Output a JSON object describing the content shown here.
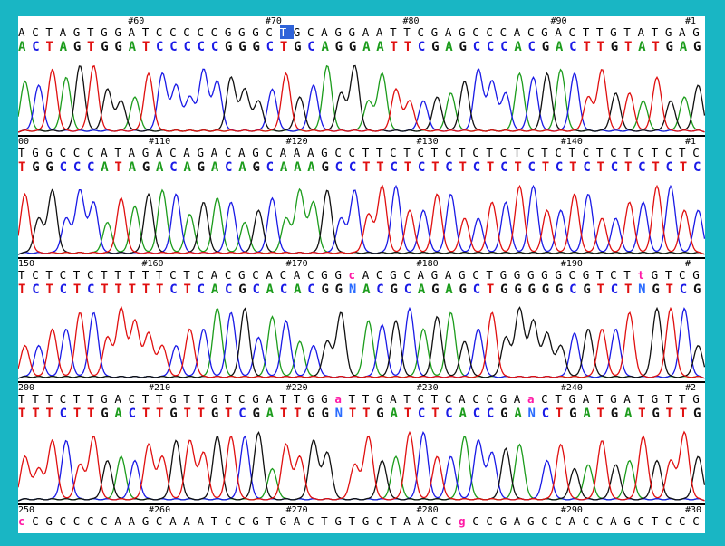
{
  "rows": [
    {
      "ruler": [
        {
          "label": "#60",
          "pos": 0.16
        },
        {
          "label": "#70",
          "pos": 0.36
        },
        {
          "label": "#80",
          "pos": 0.56
        },
        {
          "label": "#90",
          "pos": 0.775
        },
        {
          "label": "#1",
          "pos": 0.992
        }
      ],
      "raw": "ACTAGTGGATCCCCCGGGCTGCAGGAATTCGAGCCCACGACTTGTATGAG",
      "called": "ACTAGTGGATCCCCCGGGCTGCAGGAATTCGAGCCCACGACTTGTATGAG",
      "selected_index": 19
    },
    {
      "ruler": [
        {
          "label": "00",
          "pos": 0.0
        },
        {
          "label": "#110",
          "pos": 0.19
        },
        {
          "label": "#120",
          "pos": 0.39
        },
        {
          "label": "#130",
          "pos": 0.58
        },
        {
          "label": "#140",
          "pos": 0.79
        },
        {
          "label": "#1",
          "pos": 0.992
        }
      ],
      "raw": "TGGCCCATAGACAGACAGCAAAGCCTTCTCTCTCTCTCTCTCTCTCTCTC",
      "called": "TGGCCCATAGACAGACAGCAAAGCCTTCTCTCTCTCTCTCTCTCTCTCTC",
      "selected_index": -1
    },
    {
      "ruler": [
        {
          "label": "150",
          "pos": 0.0
        },
        {
          "label": "#160",
          "pos": 0.18
        },
        {
          "label": "#170",
          "pos": 0.39
        },
        {
          "label": "#180",
          "pos": 0.58
        },
        {
          "label": "#190",
          "pos": 0.79
        },
        {
          "label": "#",
          "pos": 0.995
        }
      ],
      "raw": "TCTCTCTTTTTCTCACGCACACGGcACGCAGAGCTGGGGGCGTCTtGTCG",
      "called": "TCTCTCTTTTTCTCACGCACACGGNACGCAGAGCTGGGGGCGTCTNGTCG",
      "selected_index": -1
    },
    {
      "ruler": [
        {
          "label": "200",
          "pos": 0.0
        },
        {
          "label": "#210",
          "pos": 0.19
        },
        {
          "label": "#220",
          "pos": 0.39
        },
        {
          "label": "#230",
          "pos": 0.58
        },
        {
          "label": "#240",
          "pos": 0.79
        },
        {
          "label": "#2",
          "pos": 0.992
        }
      ],
      "raw": "TTTCTTGACTTGTTGTCGATTGGaTTGATCTCACCGAaCTGATGATGTTG",
      "called": "TTTCTTGACTTGTTGTCGATTGGNTTGATCTCACCGANCTGATGATGTTG",
      "selected_index": -1
    },
    {
      "ruler": [
        {
          "label": "250",
          "pos": 0.0
        },
        {
          "label": "#260",
          "pos": 0.19
        },
        {
          "label": "#270",
          "pos": 0.39
        },
        {
          "label": "#280",
          "pos": 0.58
        },
        {
          "label": "#290",
          "pos": 0.79
        },
        {
          "label": "#30",
          "pos": 0.975
        }
      ],
      "raw": "cCGCCCCAAGCAAATCCGTGACTGTGCTAACCgCCGAGCCACCAGCTCCC",
      "called": "",
      "selected_index": -1
    }
  ],
  "colors": {
    "frame": "#19b6c4",
    "A": "#1c9c1c",
    "C": "#1a1ae6",
    "G": "#111111",
    "T": "#e01010",
    "ambiguous": "#ff1aa6",
    "selection": "#2f63d9"
  }
}
